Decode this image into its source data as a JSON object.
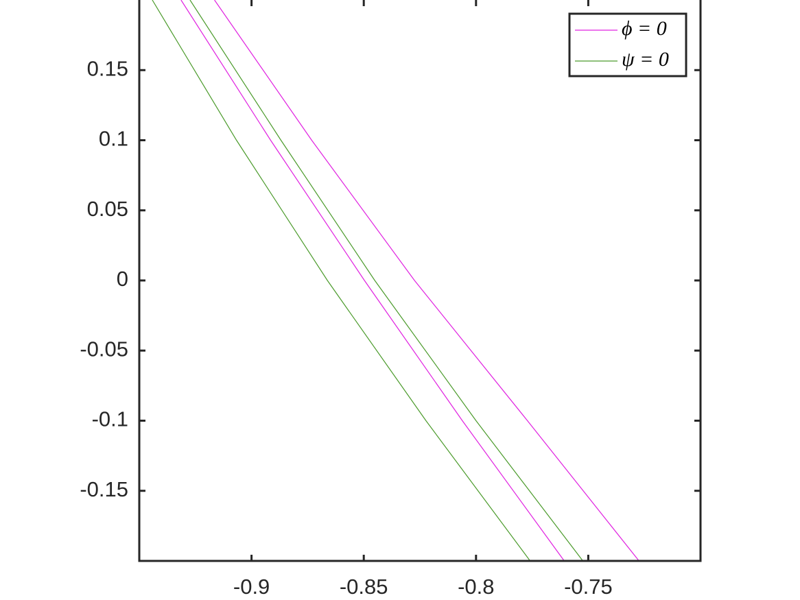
{
  "chart_data": {
    "type": "line",
    "xlim": [
      -0.95,
      -0.7
    ],
    "ylim": [
      -0.2,
      0.2
    ],
    "xticks": [
      -0.9,
      -0.85,
      -0.8,
      -0.75
    ],
    "yticks": [
      -0.15,
      -0.1,
      -0.05,
      0,
      0.05,
      0.1,
      0.15
    ],
    "legend": "upper right",
    "series": [
      {
        "name": "ϕ = 0",
        "color": "#e020e0",
        "x": [
          -0.9165,
          -0.8732,
          -0.8274,
          -0.7771,
          -0.7274,
          null,
          -0.9314,
          -0.8915,
          -0.8497,
          -0.8061,
          -0.7607
        ],
        "values": [
          0.2,
          0.1,
          0.0,
          -0.1,
          -0.2,
          null,
          0.2,
          0.1,
          0.0,
          -0.1,
          -0.2
        ]
      },
      {
        "name": "ψ = 0",
        "color": "#4a9a2a",
        "x": [
          -0.9274,
          -0.8869,
          -0.8451,
          -0.8,
          -0.7524,
          null,
          -0.9442,
          -0.9067,
          -0.8662,
          -0.8223,
          -0.7759
        ],
        "values": [
          0.2,
          0.1,
          0.0,
          -0.1,
          -0.2,
          null,
          0.2,
          0.1,
          0.0,
          -0.1,
          -0.2
        ]
      }
    ]
  }
}
